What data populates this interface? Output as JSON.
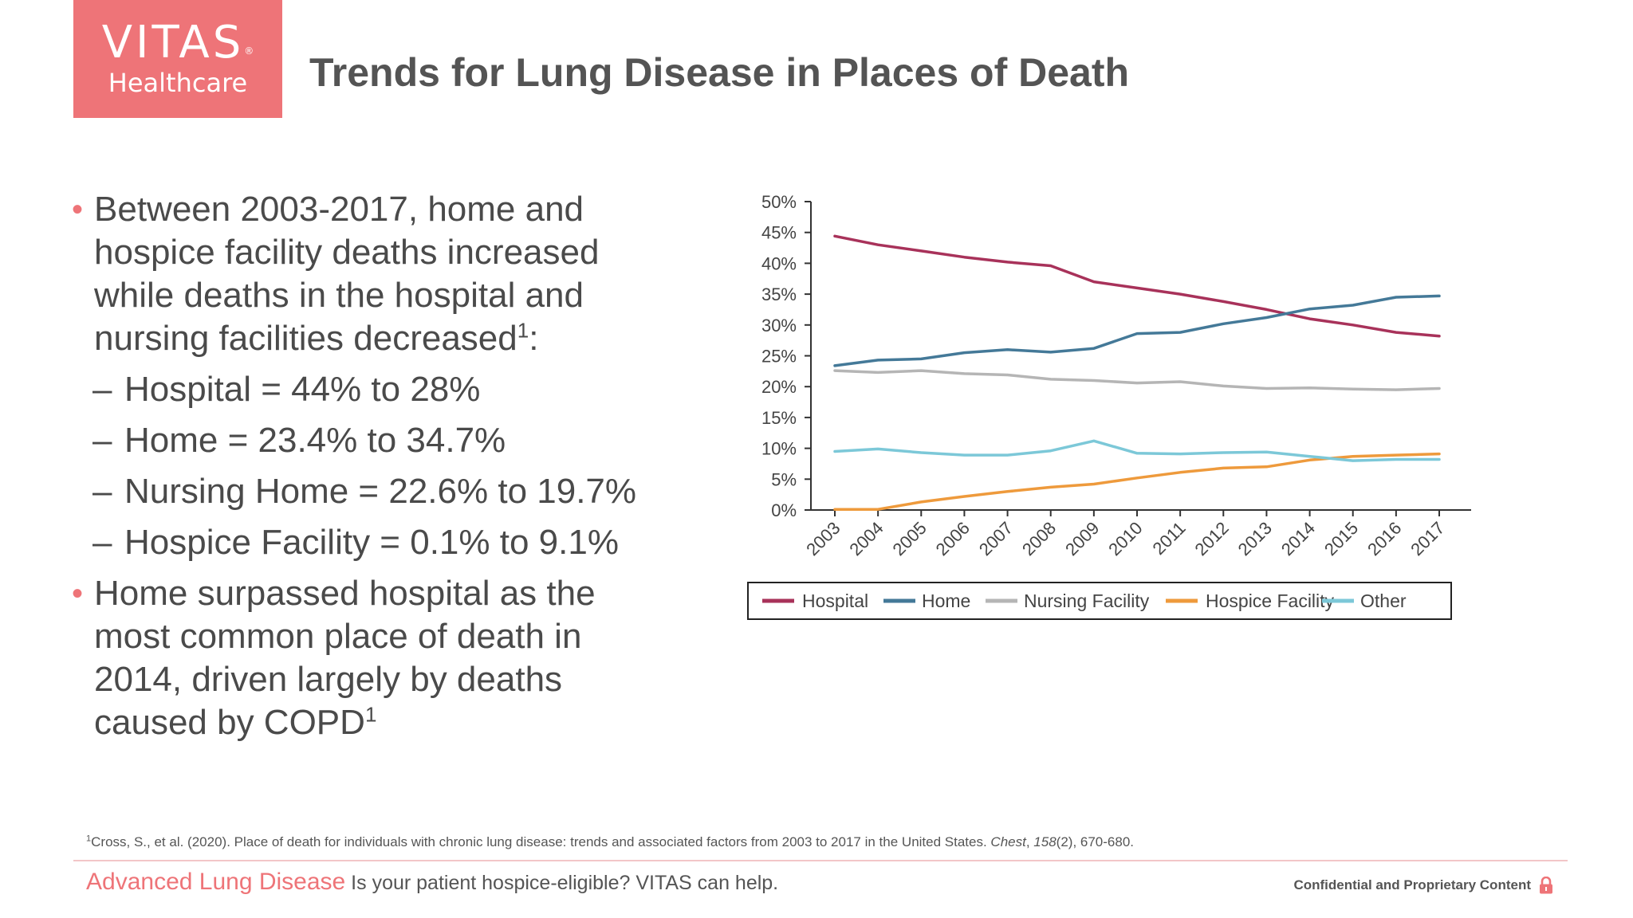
{
  "logo": {
    "name": "VITAS",
    "registered": "®",
    "subtitle": "Healthcare"
  },
  "title": "Trends for Lung Disease in Places of Death",
  "bullets": {
    "b1_text": "Between 2003-2017, home and hospice facility deaths increased while deaths in the hospital and nursing facilities decreased",
    "b1_sup": "1",
    "b1_colon": ":",
    "subs": [
      "Hospital = 44% to 28%",
      "Home = 23.4% to 34.7%",
      "Nursing Home = 22.6% to 19.7%",
      "Hospice Facility = 0.1% to 9.1%"
    ],
    "b2_text": "Home surpassed hospital as the most common place of death in 2014, driven largely by deaths caused by COPD",
    "b2_sup": "1"
  },
  "chart_data": {
    "type": "line",
    "x": [
      "2003",
      "2004",
      "2005",
      "2006",
      "2007",
      "2008",
      "2009",
      "2010",
      "2011",
      "2012",
      "2013",
      "2014",
      "2015",
      "2016",
      "2017"
    ],
    "ylim": [
      0,
      50
    ],
    "yticks": [
      "0%",
      "5%",
      "10%",
      "15%",
      "20%",
      "25%",
      "30%",
      "35%",
      "40%",
      "45%",
      "50%"
    ],
    "legend_position": "bottom",
    "series": [
      {
        "name": "Hospital",
        "color": "#a8325a",
        "values": [
          44.4,
          43.0,
          42.0,
          41.0,
          40.2,
          39.6,
          37.0,
          36.0,
          35.0,
          33.8,
          32.5,
          31.0,
          30.0,
          28.8,
          28.2
        ]
      },
      {
        "name": "Home",
        "color": "#447998",
        "values": [
          23.4,
          24.3,
          24.5,
          25.5,
          26.0,
          25.6,
          26.2,
          28.6,
          28.8,
          30.2,
          31.2,
          32.6,
          33.2,
          34.5,
          34.7
        ]
      },
      {
        "name": "Nursing Facility",
        "color": "#b5b5b5",
        "values": [
          22.6,
          22.3,
          22.6,
          22.1,
          21.9,
          21.2,
          21.0,
          20.6,
          20.8,
          20.1,
          19.7,
          19.8,
          19.6,
          19.5,
          19.7
        ]
      },
      {
        "name": "Hospice Facility",
        "color": "#ee9a3c",
        "values": [
          0.1,
          0.1,
          1.3,
          2.2,
          3.0,
          3.7,
          4.2,
          5.2,
          6.1,
          6.8,
          7.0,
          8.1,
          8.7,
          8.9,
          9.1
        ]
      },
      {
        "name": "Other",
        "color": "#7cc8d8",
        "values": [
          9.5,
          9.9,
          9.3,
          8.9,
          8.9,
          9.6,
          11.2,
          9.2,
          9.1,
          9.3,
          9.4,
          8.7,
          8.0,
          8.2,
          8.2
        ]
      }
    ]
  },
  "footnote": {
    "sup": "1",
    "pre": "Cross, S., et al. (2020). Place of death for individuals with chronic lung disease: trends and associated factors from 2003 to 2017 in the United States. ",
    "journal": "Chest",
    "sep": ", ",
    "volume": "158",
    "rest": "(2), 670-680."
  },
  "footer": {
    "brand": "Advanced Lung Disease",
    "tagline": " Is your patient hospice-eligible? VITAS can help.",
    "confidential": "Confidential and Proprietary Content",
    "lock_icon": "lock-icon",
    "accent": "#ee7478"
  }
}
